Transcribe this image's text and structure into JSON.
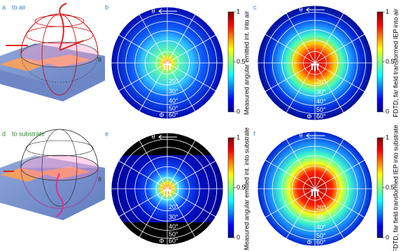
{
  "panels": [
    {
      "letter": "a",
      "title": "to air",
      "theta_label": "θ"
    },
    {
      "letter": "b",
      "colorbar_label": "Measured angular emitted int. into air",
      "colorbar_ticks": [
        "0",
        "0.5",
        "1"
      ],
      "angle_labels": [
        "20°",
        "30°",
        "40°",
        "50°",
        "60°"
      ],
      "phi_label": "Φ",
      "theta_label": "θ"
    },
    {
      "letter": "c",
      "colorbar_label": "FDTD, far field transformed IEP into air",
      "colorbar_ticks": [
        "0",
        "0.5",
        "1"
      ],
      "angle_labels": [
        "20°",
        "30°",
        "40°",
        "50°",
        "60°"
      ],
      "phi_label": "Φ",
      "theta_label": "θ"
    },
    {
      "letter": "d",
      "title": "to substrate",
      "theta_label": "θ"
    },
    {
      "letter": "e",
      "colorbar_label": "Measured angular emitted int. into substrate",
      "colorbar_ticks": [
        "0",
        "0.5",
        "1"
      ],
      "angle_labels": [
        "20°",
        "30°",
        "40°",
        "50°",
        "60°"
      ],
      "phi_label": "Φ",
      "theta_label": "θ"
    },
    {
      "letter": "f",
      "colorbar_label": "FDTD, far field transformed IEP into substrate",
      "colorbar_ticks": [
        "0",
        "0.5",
        "1"
      ],
      "angle_labels": [
        "20°",
        "30°",
        "40°",
        "50°",
        "60°"
      ],
      "phi_label": "Φ",
      "theta_label": "θ"
    }
  ]
}
